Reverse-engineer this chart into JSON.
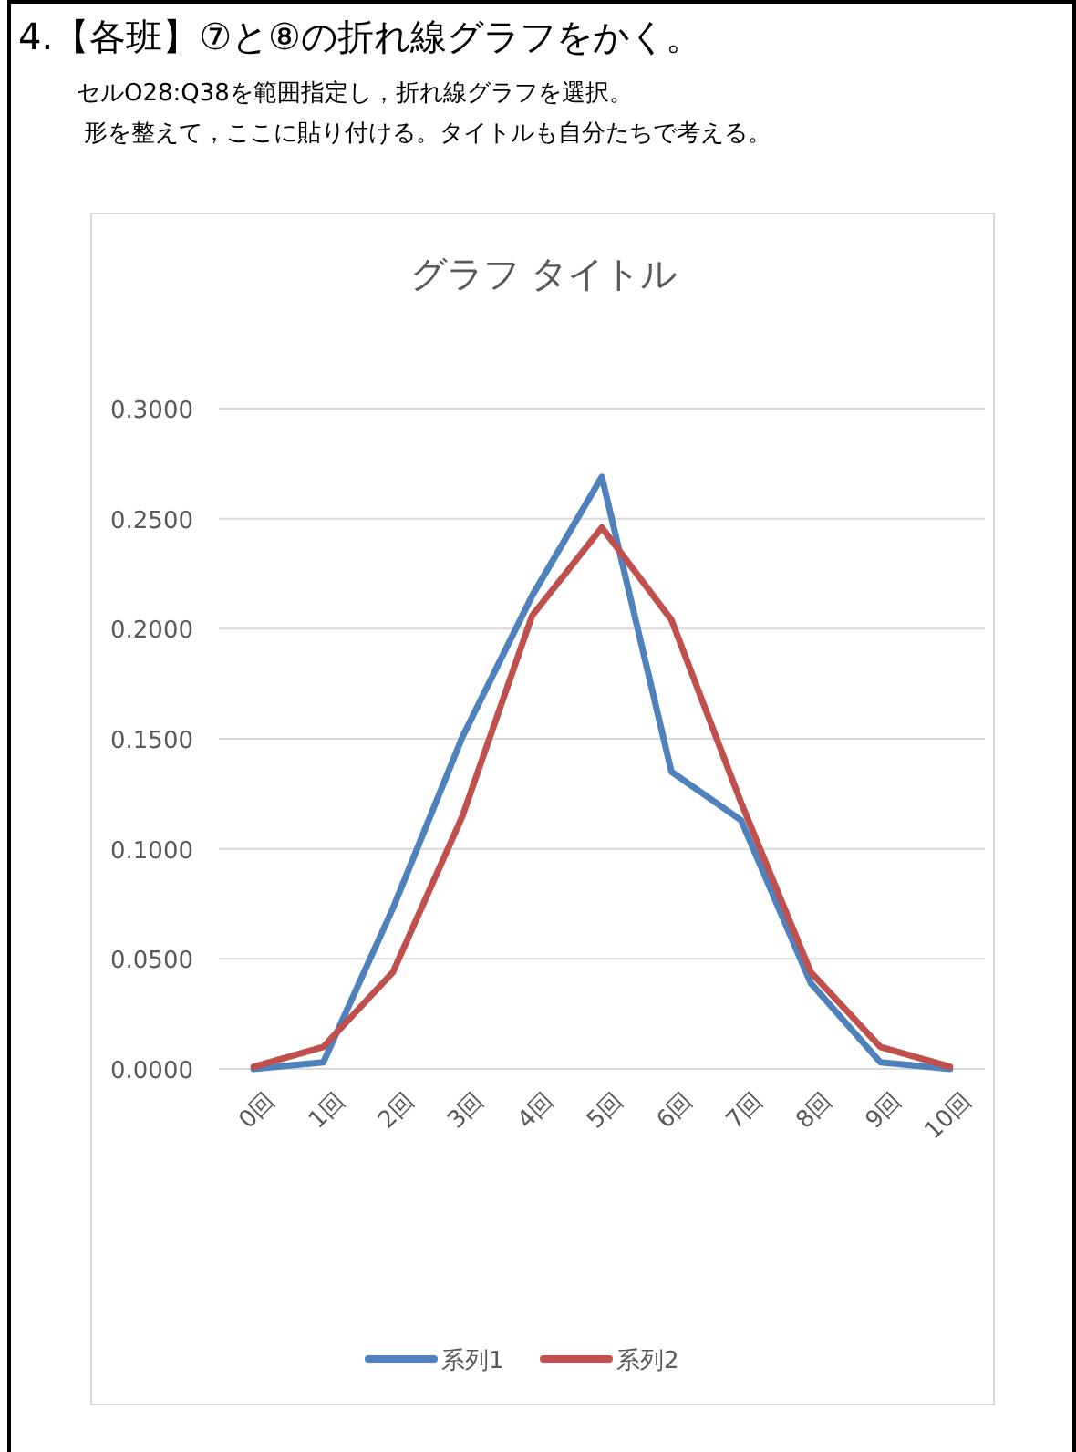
{
  "chart_data": {
    "type": "line",
    "title": "グラフ タイトル",
    "annotations": [
      "4.【各班】⑦と⑧の折れ線グラフをかく。",
      "セルO28:Q38を範囲指定し，折れ線グラフを選択。",
      "形を整えて，ここに貼り付ける。タイトルも自分たちで考える。"
    ],
    "categories": [
      "0回",
      "1回",
      "2回",
      "3回",
      "4回",
      "5回",
      "6回",
      "7回",
      "8回",
      "9回",
      "10回"
    ],
    "series": [
      {
        "name": "系列1",
        "color": "#4f81bd",
        "values": [
          0.0,
          0.003,
          0.073,
          0.151,
          0.215,
          0.269,
          0.135,
          0.113,
          0.039,
          0.003,
          0.0
        ]
      },
      {
        "name": "系列2",
        "color": "#c0504d",
        "values": [
          0.001,
          0.01,
          0.044,
          0.115,
          0.206,
          0.246,
          0.204,
          0.121,
          0.044,
          0.01,
          0.001
        ]
      }
    ],
    "ylim": [
      0,
      0.3
    ],
    "yticks": [
      {
        "value": 0,
        "label": "0.0000"
      },
      {
        "value": 0.05,
        "label": "0.0500"
      },
      {
        "value": 0.1,
        "label": "0.1000"
      },
      {
        "value": 0.15,
        "label": "0.1500"
      },
      {
        "value": 0.2,
        "label": "0.2000"
      },
      {
        "value": 0.25,
        "label": "0.2500"
      },
      {
        "value": 0.3,
        "label": "0.3000"
      }
    ],
    "grid": "y",
    "legend": "bottom",
    "marker": "none",
    "line_style": "solid"
  }
}
